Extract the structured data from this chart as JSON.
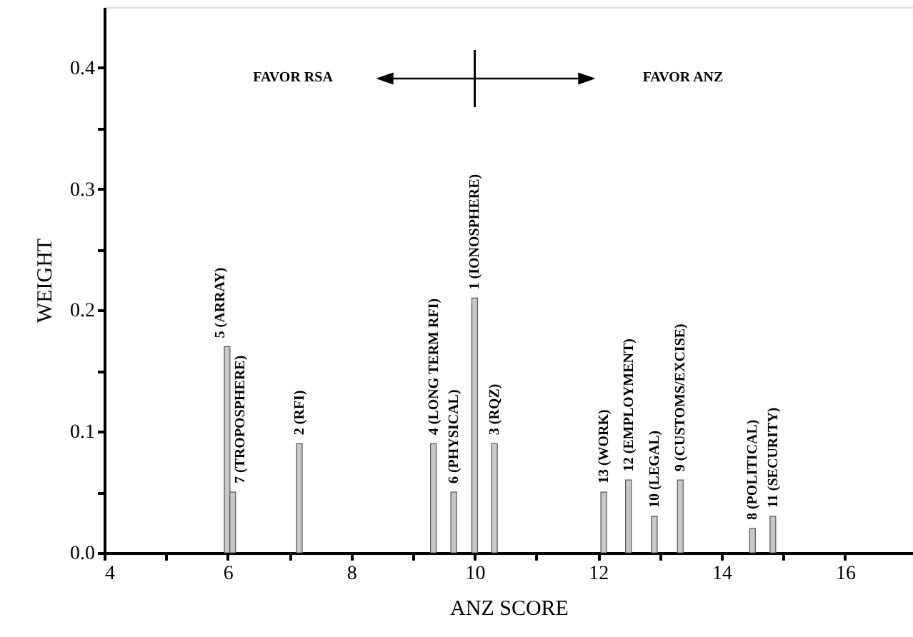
{
  "chart_data": {
    "type": "bar",
    "xlabel": "ANZ SCORE",
    "ylabel": "WEIGHT",
    "x": [
      5.99,
      6.08,
      7.16,
      9.33,
      9.66,
      10.0,
      10.32,
      12.09,
      12.49,
      12.91,
      13.33,
      14.5,
      14.83
    ],
    "series": [
      {
        "color": "#c8c8c8",
        "values": [
          0.17,
          0.05,
          0.09,
          0.09,
          0.05,
          0.21,
          0.09,
          0.05,
          0.06,
          0.03,
          0.06,
          0.02,
          0.03
        ]
      }
    ],
    "xlim": [
      4,
      17.1
    ],
    "xticks": [
      4,
      {
        "value": 5,
        "label": null
      },
      6,
      {
        "value": 7,
        "label": null
      },
      8,
      {
        "value": 9,
        "label": null
      },
      10,
      {
        "value": 11,
        "label": null
      },
      12,
      {
        "value": 13,
        "label": null
      },
      14,
      {
        "value": 15,
        "label": null
      },
      16
    ],
    "ylim": [
      0,
      0.45
    ],
    "yticks": [
      {
        "value": 0,
        "label": "0.0"
      },
      {
        "value": 0.05,
        "label": null
      },
      {
        "value": 0.1,
        "label": "0.1"
      },
      {
        "value": 0.15,
        "label": null
      },
      {
        "value": 0.2,
        "label": "0.2"
      },
      {
        "value": 0.25,
        "label": null
      },
      {
        "value": 0.3,
        "label": "0.3"
      },
      {
        "value": 0.35,
        "label": null
      },
      {
        "value": 0.4,
        "label": "0.4"
      }
    ],
    "grid": false,
    "ref_lines": [
      {
        "axis": "x",
        "value": 10
      }
    ],
    "annotations": [
      "FAVOR RSA",
      "FAVOR ANZ",
      {
        "text": "5 (ARRAY)",
        "x": 5.99,
        "y": 0.17
      },
      {
        "text": "7 (TROPOSPHERE)",
        "x": 6.08,
        "y": 0.05
      },
      {
        "text": "2 (RFI)",
        "x": 7.16,
        "y": 0.09
      },
      {
        "text": "4 (LONG TERM RFI)",
        "x": 9.33,
        "y": 0.09
      },
      {
        "text": "6 (PHYSICAL)",
        "x": 9.66,
        "y": 0.05
      },
      {
        "text": "1 (IONOSPHERE)",
        "x": 10.0,
        "y": 0.21
      },
      {
        "text": "3 (RQZ)",
        "x": 10.32,
        "y": 0.09
      },
      {
        "text": "13 (WORK)",
        "x": 12.09,
        "y": 0.05
      },
      {
        "text": "12 (EMPLOYMENT)",
        "x": 12.49,
        "y": 0.06
      },
      {
        "text": "10 (LEGAL)",
        "x": 12.91,
        "y": 0.03
      },
      {
        "text": "9 (CUSTOMS/EXCISE)",
        "x": 13.33,
        "y": 0.06
      },
      {
        "text": "8 (POLITICAL)",
        "x": 14.5,
        "y": 0.02
      },
      {
        "text": "11 (SECURITY)",
        "x": 14.83,
        "y": 0.03
      }
    ]
  }
}
